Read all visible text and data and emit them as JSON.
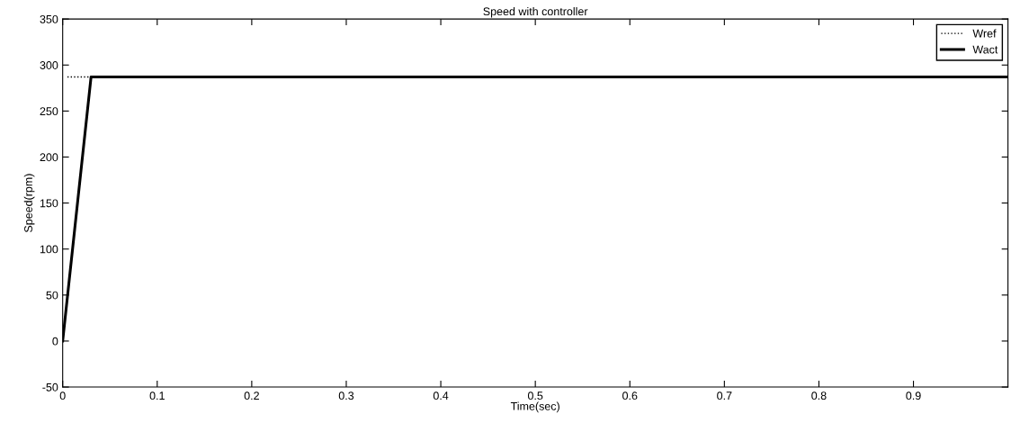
{
  "chart_data": {
    "type": "line",
    "title": "Speed with controller",
    "xlabel": "Time(sec)",
    "ylabel": "Speed(rpm)",
    "series": [
      {
        "name": "Wref",
        "color": "#000000",
        "line_style": "dotted",
        "x": [
          0.005,
          0.03
        ],
        "values": [
          287,
          287
        ]
      },
      {
        "name": "Wact",
        "color": "#000000",
        "line_style": "solid",
        "x": [
          0,
          0.03,
          1
        ],
        "values": [
          0,
          287,
          287
        ]
      }
    ],
    "xlim": [
      0,
      1
    ],
    "xticks": [
      0,
      0.1,
      0.2,
      0.3,
      0.4,
      0.5,
      0.6,
      0.7,
      0.8,
      0.9
    ],
    "ylim": [
      -50,
      350
    ],
    "yticks": [
      -50,
      0,
      50,
      100,
      150,
      200,
      250,
      300,
      350
    ],
    "grid": false,
    "legend": "top right",
    "marker": "none"
  }
}
